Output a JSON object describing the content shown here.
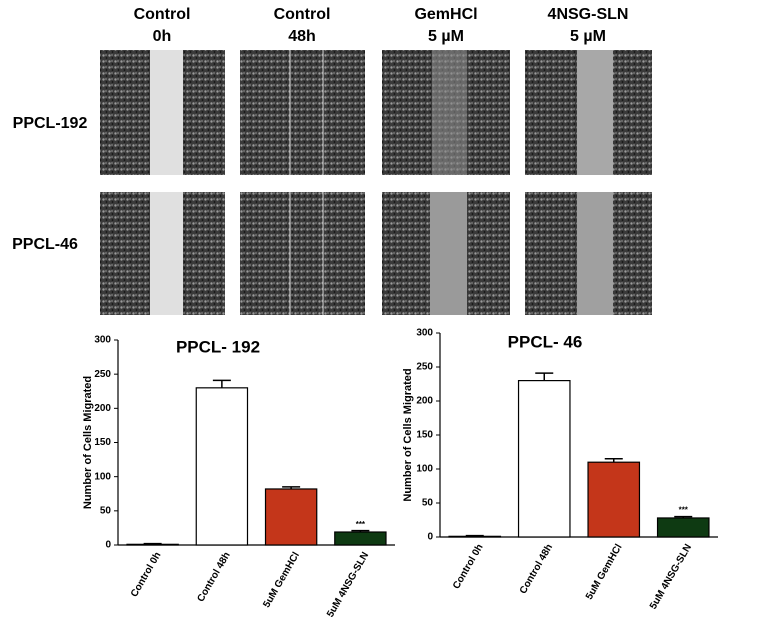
{
  "panel": {
    "columns": [
      [
        "Control",
        "0h"
      ],
      [
        "Control",
        "48h"
      ],
      [
        "GemHCl",
        "5 µM"
      ],
      [
        "4NSG-SLN",
        "5 µM"
      ]
    ],
    "rows": [
      "PPCL-192",
      "PPCL-46"
    ]
  },
  "chart_data": [
    {
      "type": "bar",
      "title": "PPCL- 192",
      "y_label": "Number of Cells Migrated",
      "categories": [
        "Control 0h",
        "Control 48h",
        "5uM GemHCl",
        "5uM 4NSG-SLN"
      ],
      "values": [
        1,
        230,
        82,
        19
      ],
      "errors": [
        1,
        11,
        3,
        2
      ],
      "colors": [
        "#ffffff",
        "#ffffff",
        "#c4361a",
        "#0e3a12"
      ],
      "annotations": [
        null,
        null,
        null,
        "***"
      ],
      "ylim": [
        0,
        300
      ],
      "yticks": [
        0,
        50,
        100,
        150,
        200,
        250,
        300
      ]
    },
    {
      "type": "bar",
      "title": "PPCL- 46",
      "y_label": "Number of Cells Migrated",
      "categories": [
        "Control 0h",
        "Control 48h",
        "5uM GemHCl",
        "5uM 4NSG-SLN"
      ],
      "values": [
        1,
        230,
        110,
        28
      ],
      "errors": [
        1,
        11,
        5,
        2
      ],
      "colors": [
        "#ffffff",
        "#ffffff",
        "#c4361a",
        "#0e3a12"
      ],
      "annotations": [
        null,
        null,
        null,
        "***"
      ],
      "ylim": [
        0,
        300
      ],
      "yticks": [
        0,
        50,
        100,
        150,
        200,
        250,
        300
      ]
    }
  ]
}
